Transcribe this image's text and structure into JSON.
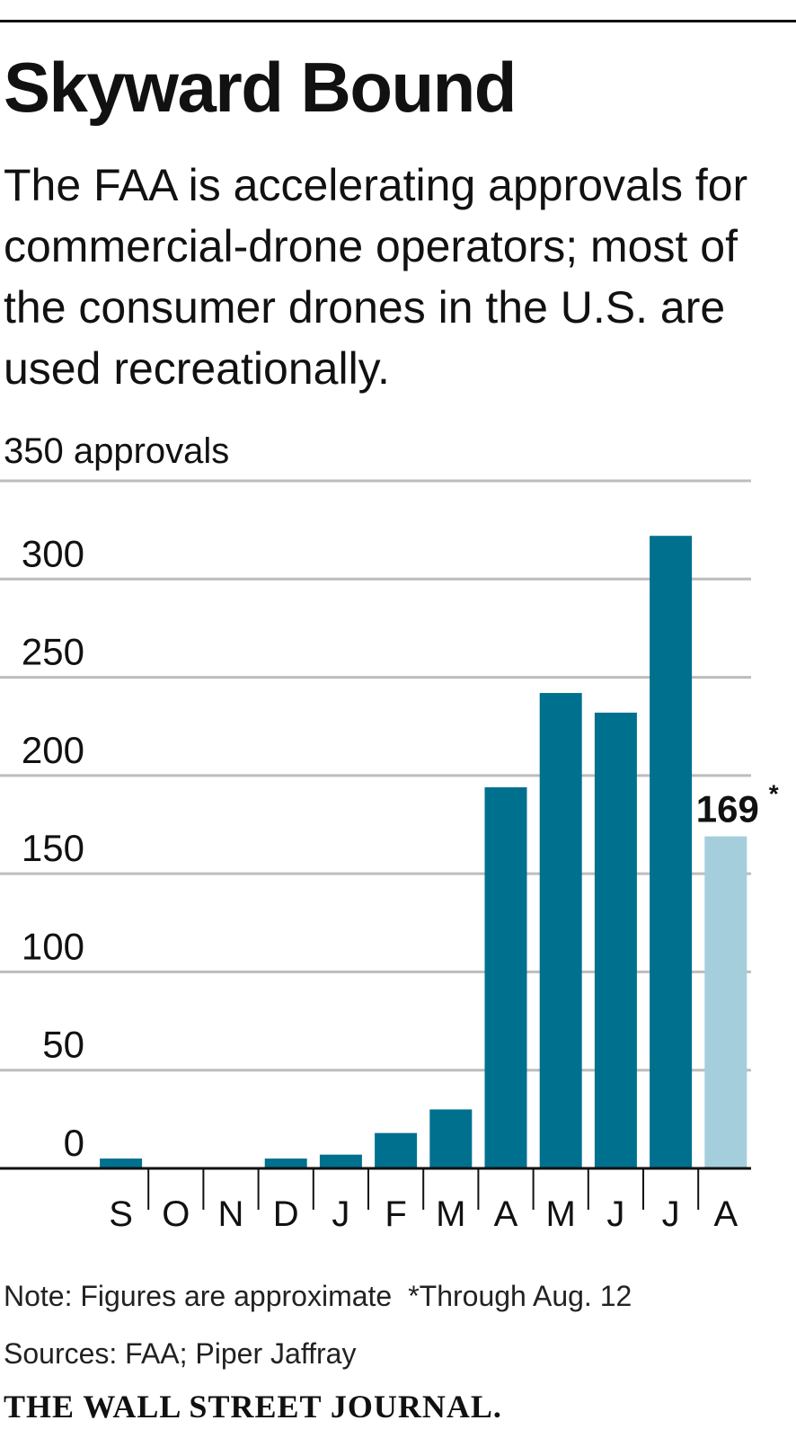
{
  "header": {
    "title": "Skyward Bound",
    "subtitle": "The FAA is accelerating approvals for commercial-drone operators; most of the consumer drones in the U.S. are used recreationally."
  },
  "chart_data": {
    "type": "bar",
    "title": "Skyward Bound",
    "ylabel": "approvals",
    "top_tick_label": "350 approvals",
    "ylim": [
      0,
      350
    ],
    "yticks": [
      0,
      50,
      100,
      150,
      200,
      250,
      300
    ],
    "categories": [
      "S",
      "O",
      "N",
      "D",
      "J",
      "F",
      "M",
      "A",
      "M",
      "J",
      "J",
      "A"
    ],
    "values": [
      5,
      0,
      0,
      5,
      7,
      18,
      30,
      194,
      242,
      232,
      322,
      169
    ],
    "highlight": {
      "index": 11,
      "label": "169",
      "suffix": "*",
      "color": "#a5cedd"
    },
    "bar_color": "#00708f",
    "grid": true
  },
  "footer": {
    "note": "Note: Figures are approximate",
    "asterisk_note": "*Through Aug. 12",
    "sources": "Sources: FAA; Piper Jaffray",
    "masthead": "THE WALL STREET JOURNAL."
  }
}
